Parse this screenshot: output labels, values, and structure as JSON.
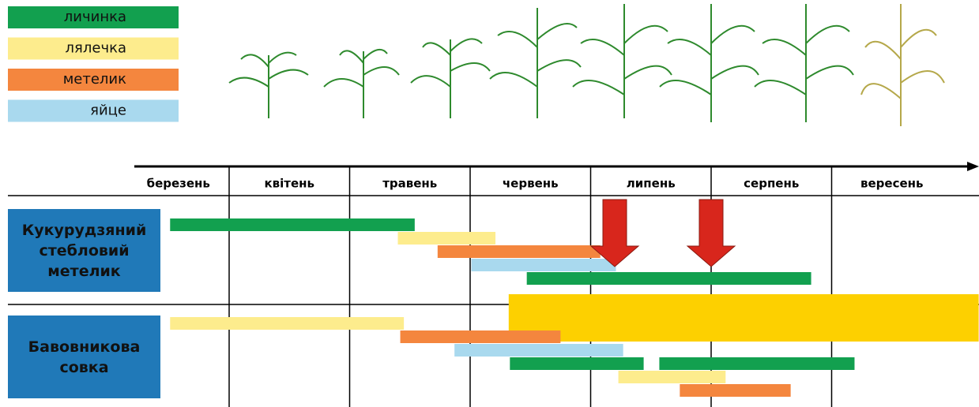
{
  "legend": [
    {
      "label": "личинка",
      "color": "#12a04f"
    },
    {
      "label": "лялечка",
      "color": "#fdec8d"
    },
    {
      "label": "метелик",
      "color": "#f4863e"
    },
    {
      "label": "яйце",
      "color": "#a9d9ee"
    }
  ],
  "months": [
    "березень",
    "квітень",
    "травень",
    "червень",
    "липень",
    "серпень",
    "вересень"
  ],
  "highlight": {
    "start": 3.32,
    "end": 7.22,
    "color": "#fdd000"
  },
  "arrows": {
    "color": "#d8261c",
    "positions": [
      4.2,
      5.0
    ]
  },
  "pests": [
    {
      "name": "Кукурудзяний стебловий метелик",
      "bars": [
        {
          "stage": 0,
          "lane": 0,
          "start": 0.51,
          "end": 2.54
        },
        {
          "stage": 1,
          "lane": 1,
          "start": 2.4,
          "end": 3.21
        },
        {
          "stage": 2,
          "lane": 2,
          "start": 2.73,
          "end": 4.08
        },
        {
          "stage": 3,
          "lane": 3,
          "start": 3.01,
          "end": 4.21
        },
        {
          "stage": 0,
          "lane": 4,
          "start": 3.47,
          "end": 5.83
        }
      ]
    },
    {
      "name": "Бавовникова совка",
      "bars": [
        {
          "stage": 1,
          "lane": 0,
          "start": 0.51,
          "end": 2.45
        },
        {
          "stage": 2,
          "lane": 1,
          "start": 2.42,
          "end": 3.75
        },
        {
          "stage": 3,
          "lane": 2,
          "start": 2.87,
          "end": 4.27
        },
        {
          "stage": 0,
          "lane": 3,
          "start": 3.33,
          "end": 4.44
        },
        {
          "stage": 0,
          "lane": 3,
          "start": 4.57,
          "end": 6.19
        },
        {
          "stage": 1,
          "lane": 4,
          "start": 4.23,
          "end": 5.12
        },
        {
          "stage": 2,
          "lane": 5,
          "start": 4.74,
          "end": 5.66
        }
      ]
    }
  ]
}
